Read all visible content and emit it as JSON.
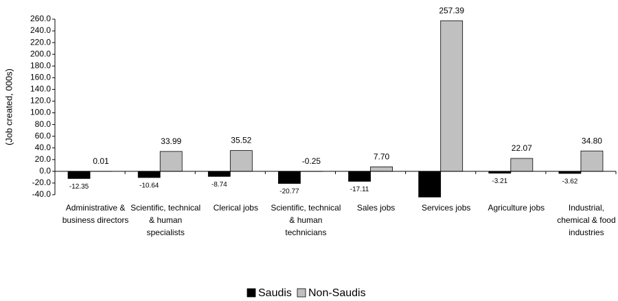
{
  "chart_data": {
    "type": "bar",
    "y_label": "(Job created, 000s)",
    "categories": [
      "Administrative & business directors",
      "Scientific, technical & human specialists",
      "Clerical jobs",
      "Scientific, technical & human technicians",
      "Sales jobs",
      "Services jobs",
      "Agriculture jobs",
      "Industrial, chemical & food industries"
    ],
    "series": [
      {
        "name": "Saudis",
        "color": "#000000",
        "values": [
          -12.35,
          -10.64,
          -8.74,
          -20.77,
          -17.11,
          -44,
          -3.21,
          -3.62
        ],
        "value_labels": [
          "-12.35",
          "-10.64",
          "-8.74",
          "-20.77",
          "-17.11",
          null,
          "-3.21",
          "-3.62"
        ]
      },
      {
        "name": "Non-Saudis",
        "color": "#c0c0c0",
        "values": [
          0.01,
          33.99,
          35.52,
          -0.25,
          7.7,
          257.39,
          22.07,
          34.8
        ],
        "value_labels": [
          "0.01",
          "33.99",
          "35.52",
          "-0.25",
          "7.70",
          "257.39",
          "22.07",
          "34.80"
        ]
      }
    ],
    "ylim": [
      -40,
      260
    ],
    "yticks": [
      {
        "value": -40,
        "label": "-40.0"
      },
      {
        "value": -20,
        "label": "-20.0"
      },
      {
        "value": 0,
        "label": "0.0"
      },
      {
        "value": 20,
        "label": "20.0"
      },
      {
        "value": 40,
        "label": "40.0"
      },
      {
        "value": 60,
        "label": "60.0"
      },
      {
        "value": 80,
        "label": "80.0"
      },
      {
        "value": 100,
        "label": "100.0"
      },
      {
        "value": 120,
        "label": "120.0"
      },
      {
        "value": 140,
        "label": "140.0"
      },
      {
        "value": 160,
        "label": "160.0"
      },
      {
        "value": 180,
        "label": "180.0"
      },
      {
        "value": 200,
        "label": "200.0"
      },
      {
        "value": 220,
        "label": "220.0"
      },
      {
        "value": 240,
        "label": "240.0"
      },
      {
        "value": 260,
        "label": "260.0"
      }
    ],
    "grid": false,
    "legend": "bottom"
  }
}
